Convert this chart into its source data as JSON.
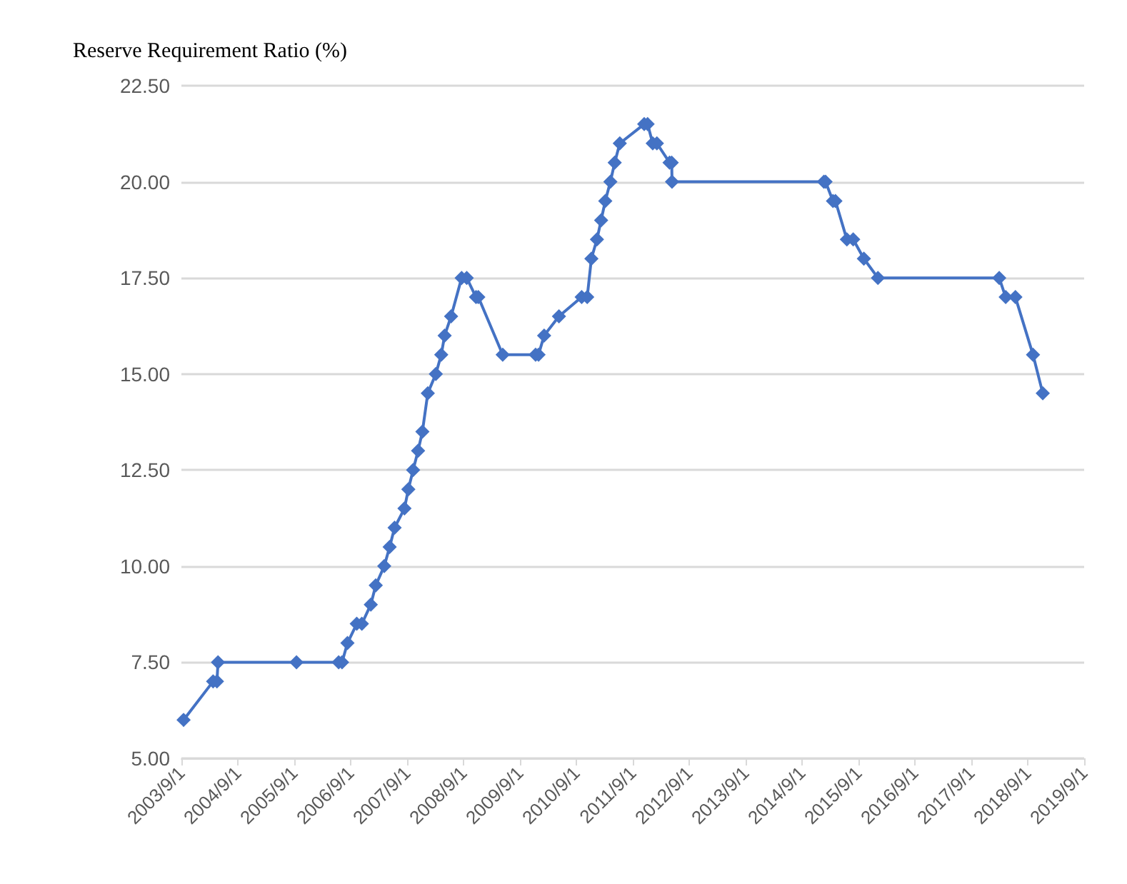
{
  "chart_data": {
    "type": "line",
    "ylabel": "Reserve Requirement Ratio (%)",
    "x": [
      "2003-09-15",
      "2004-03-24",
      "2004-04-18",
      "2004-04-25",
      "2005-09-15",
      "2006-06-15",
      "2006-07-07",
      "2006-08-11",
      "2006-10-10",
      "2006-11-12",
      "2007-01-09",
      "2007-02-10",
      "2007-04-06",
      "2007-05-11",
      "2007-06-12",
      "2007-08-15",
      "2007-09-09",
      "2007-10-10",
      "2007-11-11",
      "2007-12-09",
      "2008-01-13",
      "2008-03-05",
      "2008-04-09",
      "2008-05-01",
      "2008-06-12",
      "2008-08-19",
      "2008-09-21",
      "2008-11-20",
      "2008-12-05",
      "2009-05-12",
      "2009-12-11",
      "2009-12-30",
      "2010-02-04",
      "2010-05-11",
      "2010-10-05",
      "2010-11-10",
      "2010-12-07",
      "2011-01-12",
      "2011-02-08",
      "2011-03-07",
      "2011-04-09",
      "2011-05-07",
      "2011-06-09",
      "2011-11-14",
      "2011-12-06",
      "2012-01-08",
      "2012-02-04",
      "2012-04-26",
      "2012-05-10",
      "2012-05-12",
      "2015-01-20",
      "2015-01-31",
      "2015-03-20",
      "2015-04-05",
      "2015-06-18",
      "2015-07-29",
      "2015-10-06",
      "2016-01-05",
      "2018-02-28",
      "2018-04-11",
      "2018-06-13",
      "2018-10-05",
      "2018-12-07"
    ],
    "series": [
      {
        "color": "#4472c4",
        "values": [
          6.0,
          7.0,
          7.0,
          7.5,
          7.5,
          7.5,
          7.5,
          8.0,
          8.5,
          8.5,
          9.0,
          9.5,
          10.0,
          10.5,
          11.0,
          11.5,
          12.0,
          12.5,
          13.0,
          13.5,
          14.5,
          15.0,
          15.5,
          16.0,
          16.5,
          17.5,
          17.5,
          17.0,
          17.0,
          15.5,
          15.5,
          15.5,
          16.0,
          16.5,
          17.0,
          17.0,
          18.0,
          18.5,
          19.0,
          19.5,
          20.0,
          20.5,
          21.0,
          21.5,
          21.5,
          21.0,
          21.0,
          20.5,
          20.5,
          20.0,
          20.0,
          20.0,
          19.5,
          19.5,
          18.5,
          18.5,
          18.0,
          17.5,
          17.5,
          17.0,
          17.0,
          15.5,
          14.5
        ]
      }
    ],
    "xlim": [
      "2003-09-01",
      "2019-09-01"
    ],
    "xticks": [
      {
        "value": "2003-09-01",
        "label": "2003/9/1"
      },
      {
        "value": "2004-09-01",
        "label": "2004/9/1"
      },
      {
        "value": "2005-09-01",
        "label": "2005/9/1"
      },
      {
        "value": "2006-09-01",
        "label": "2006/9/1"
      },
      {
        "value": "2007-09-01",
        "label": "2007/9/1"
      },
      {
        "value": "2008-09-01",
        "label": "2008/9/1"
      },
      {
        "value": "2009-09-01",
        "label": "2009/9/1"
      },
      {
        "value": "2010-09-01",
        "label": "2010/9/1"
      },
      {
        "value": "2011-09-01",
        "label": "2011/9/1"
      },
      {
        "value": "2012-09-01",
        "label": "2012/9/1"
      },
      {
        "value": "2013-09-01",
        "label": "2013/9/1"
      },
      {
        "value": "2014-09-01",
        "label": "2014/9/1"
      },
      {
        "value": "2015-09-01",
        "label": "2015/9/1"
      },
      {
        "value": "2016-09-01",
        "label": "2016/9/1"
      },
      {
        "value": "2017-09-01",
        "label": "2017/9/1"
      },
      {
        "value": "2018-09-01",
        "label": "2018/9/1"
      },
      {
        "value": "2019-09-01",
        "label": "2019/9/1"
      }
    ],
    "ylim": [
      5,
      22.5
    ],
    "yticks": [
      {
        "value": 5,
        "label": "5.00"
      },
      {
        "value": 7.5,
        "label": "7.50"
      },
      {
        "value": 10,
        "label": "10.00"
      },
      {
        "value": 12.5,
        "label": "12.50"
      },
      {
        "value": 15,
        "label": "15.00"
      },
      {
        "value": 17.5,
        "label": "17.50"
      },
      {
        "value": 20,
        "label": "20.00"
      },
      {
        "value": 22.5,
        "label": "22.50"
      }
    ],
    "grid": "y",
    "marker": "diamond",
    "line_style": "solid"
  }
}
